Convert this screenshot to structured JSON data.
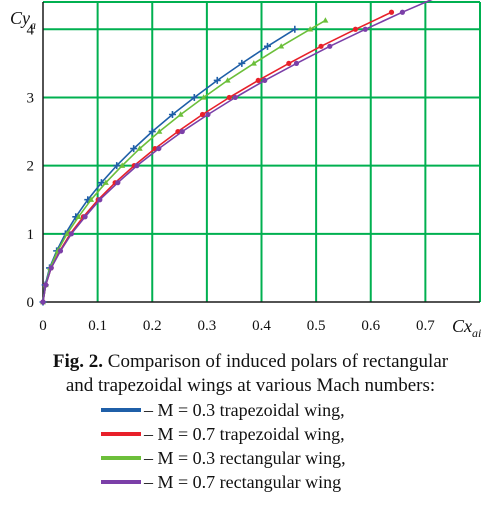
{
  "chart_data": {
    "type": "line",
    "xlabel_main": "Cx",
    "xlabel_sub": "ai",
    "ylabel_main": "Cy",
    "ylabel_sub": "a",
    "xlim": [
      0,
      0.8
    ],
    "ylim": [
      0,
      4.4
    ],
    "x_ticks": [
      0,
      0.1,
      0.2,
      0.3,
      0.4,
      0.5,
      0.6,
      0.7
    ],
    "x_tick_labels": [
      "0",
      "0.1",
      "0.2",
      "0.3",
      "0.4",
      "0.5",
      "0.6",
      "0.7"
    ],
    "y_ticks": [
      0,
      1,
      2,
      3,
      4
    ],
    "y_tick_labels": [
      "0",
      "1",
      "2",
      "3",
      "4"
    ],
    "grid": true,
    "grid_color": "#00b050",
    "series": [
      {
        "name": "M = 0.3 trapezoidal wing",
        "color": "#1f5fa8",
        "marker": "plus",
        "x": [
          0,
          0.004,
          0.012,
          0.025,
          0.041,
          0.06,
          0.082,
          0.107,
          0.135,
          0.166,
          0.2,
          0.237,
          0.277,
          0.319,
          0.364,
          0.411,
          0.461
        ],
        "y": [
          0,
          0.25,
          0.5,
          0.75,
          1.0,
          1.25,
          1.5,
          1.75,
          2.0,
          2.25,
          2.5,
          2.75,
          3.0,
          3.25,
          3.5,
          3.75,
          4.0
        ]
      },
      {
        "name": "M = 0.7 trapezoidal wing",
        "color": "#e8202a",
        "marker": "dot",
        "x": [
          0,
          0.005,
          0.015,
          0.031,
          0.05,
          0.074,
          0.101,
          0.132,
          0.167,
          0.205,
          0.247,
          0.292,
          0.341,
          0.394,
          0.45,
          0.509,
          0.572,
          0.638
        ],
        "y": [
          0,
          0.25,
          0.5,
          0.75,
          1.0,
          1.25,
          1.5,
          1.75,
          2.0,
          2.25,
          2.5,
          2.75,
          3.0,
          3.25,
          3.5,
          3.75,
          4.0,
          4.25
        ]
      },
      {
        "name": "M = 0.3 rectangular wing",
        "color": "#6cbf3a",
        "marker": "triangle",
        "x": [
          0,
          0.005,
          0.013,
          0.027,
          0.044,
          0.065,
          0.088,
          0.115,
          0.145,
          0.177,
          0.213,
          0.252,
          0.294,
          0.338,
          0.386,
          0.436,
          0.489,
          0.517
        ],
        "y": [
          0,
          0.25,
          0.5,
          0.75,
          1.0,
          1.25,
          1.5,
          1.75,
          2.0,
          2.25,
          2.5,
          2.75,
          3.0,
          3.25,
          3.5,
          3.75,
          4.0,
          4.13
        ]
      },
      {
        "name": "M = 0.7 rectangular wing",
        "color": "#7b3fa8",
        "marker": "dot",
        "x": [
          0,
          0.005,
          0.015,
          0.032,
          0.052,
          0.077,
          0.104,
          0.137,
          0.172,
          0.212,
          0.255,
          0.302,
          0.352,
          0.406,
          0.464,
          0.525,
          0.59,
          0.658,
          0.73
        ],
        "y": [
          0,
          0.25,
          0.5,
          0.75,
          1.0,
          1.25,
          1.5,
          1.75,
          2.0,
          2.25,
          2.5,
          2.75,
          3.0,
          3.25,
          3.5,
          3.75,
          4.0,
          4.25,
          4.5
        ]
      }
    ]
  },
  "caption": {
    "fig_label": "Fig. 2.",
    "line1": " Comparison of induced polars of rectangular",
    "line2": "and trapezoidal wings at various Mach numbers:"
  },
  "legend": [
    {
      "text": " – M = 0.3 trapezoidal wing,",
      "color": "#1f5fa8"
    },
    {
      "text": " – M = 0.7 trapezoidal wing,",
      "color": "#e8202a"
    },
    {
      "text": " – M = 0.3 rectangular wing,",
      "color": "#6cbf3a"
    },
    {
      "text": " – M = 0.7 rectangular wing",
      "color": "#7b3fa8"
    }
  ]
}
